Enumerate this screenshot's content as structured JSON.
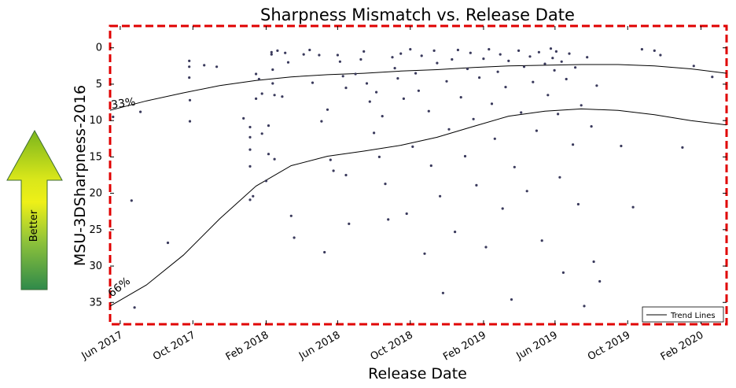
{
  "chart_data": {
    "type": "scatter",
    "title": "Sharpness Mismatch vs. Release Date",
    "xlabel": "Release Date",
    "ylabel": "MSU-3DSharpness-2016",
    "xlim": [
      "2017-05-15",
      "2020-03-15"
    ],
    "ylim": [
      38,
      -3
    ],
    "y_inverted": true,
    "x_ticks": [
      {
        "date": "2017-06-01",
        "label": "Jun 2017"
      },
      {
        "date": "2017-10-01",
        "label": "Oct 2017"
      },
      {
        "date": "2018-02-01",
        "label": "Feb 2018"
      },
      {
        "date": "2018-06-01",
        "label": "Jun 2018"
      },
      {
        "date": "2018-10-01",
        "label": "Oct 2018"
      },
      {
        "date": "2019-02-01",
        "label": "Feb 2019"
      },
      {
        "date": "2019-06-01",
        "label": "Jun 2019"
      },
      {
        "date": "2019-10-01",
        "label": "Oct 2019"
      },
      {
        "date": "2020-02-01",
        "label": "Feb 2020"
      }
    ],
    "y_ticks": [
      0,
      5,
      10,
      15,
      20,
      25,
      30,
      35
    ],
    "grid": false,
    "legend": {
      "placement": "bottom-right",
      "entries": [
        "Trend Lines"
      ]
    },
    "side_arrow_label": "Better",
    "trend_lines": [
      {
        "label": "33%",
        "points": [
          [
            "2017-05-15",
            8.6
          ],
          [
            "2017-07-15",
            7.3
          ],
          [
            "2017-09-15",
            6.2
          ],
          [
            "2017-11-15",
            5.2
          ],
          [
            "2018-01-15",
            4.5
          ],
          [
            "2018-03-15",
            4.0
          ],
          [
            "2018-05-15",
            3.7
          ],
          [
            "2018-07-15",
            3.5
          ],
          [
            "2018-09-15",
            3.2
          ],
          [
            "2018-11-15",
            3.0
          ],
          [
            "2019-01-15",
            2.7
          ],
          [
            "2019-03-15",
            2.5
          ],
          [
            "2019-05-15",
            2.4
          ],
          [
            "2019-07-15",
            2.3
          ],
          [
            "2019-09-15",
            2.3
          ],
          [
            "2019-11-15",
            2.5
          ],
          [
            "2020-01-15",
            2.9
          ],
          [
            "2020-03-15",
            3.5
          ]
        ]
      },
      {
        "label": "66%",
        "points": [
          [
            "2017-05-15",
            35.5
          ],
          [
            "2017-07-15",
            32.6
          ],
          [
            "2017-09-15",
            28.5
          ],
          [
            "2017-11-15",
            23.5
          ],
          [
            "2018-01-15",
            19.0
          ],
          [
            "2018-03-15",
            16.2
          ],
          [
            "2018-05-15",
            14.9
          ],
          [
            "2018-07-15",
            14.2
          ],
          [
            "2018-09-15",
            13.4
          ],
          [
            "2018-11-15",
            12.3
          ],
          [
            "2019-01-15",
            10.8
          ],
          [
            "2019-03-15",
            9.4
          ],
          [
            "2019-05-15",
            8.7
          ],
          [
            "2019-07-15",
            8.4
          ],
          [
            "2019-09-15",
            8.6
          ],
          [
            "2019-11-15",
            9.2
          ],
          [
            "2020-01-15",
            10.0
          ],
          [
            "2020-03-15",
            10.6
          ]
        ]
      }
    ],
    "series": [
      {
        "points": [
          [
            "2017-05-20",
            9.5
          ],
          [
            "2017-06-20",
            21.0
          ],
          [
            "2017-06-25",
            35.7
          ],
          [
            "2017-07-05",
            8.8
          ],
          [
            "2017-08-20",
            26.8
          ],
          [
            "2017-09-25",
            1.8
          ],
          [
            "2017-09-25",
            2.6
          ],
          [
            "2017-09-25",
            4.1
          ],
          [
            "2017-09-26",
            7.2
          ],
          [
            "2017-09-26",
            10.1
          ],
          [
            "2017-10-20",
            2.4
          ],
          [
            "2017-11-10",
            2.6
          ],
          [
            "2017-12-25",
            9.7
          ],
          [
            "2018-01-05",
            10.9
          ],
          [
            "2018-01-05",
            12.3
          ],
          [
            "2018-01-05",
            14.0
          ],
          [
            "2018-01-05",
            16.3
          ],
          [
            "2018-01-05",
            20.9
          ],
          [
            "2018-01-10",
            20.4
          ],
          [
            "2018-01-15",
            3.6
          ],
          [
            "2018-01-15",
            7.0
          ],
          [
            "2018-01-20",
            4.3
          ],
          [
            "2018-01-25",
            6.3
          ],
          [
            "2018-01-25",
            11.8
          ],
          [
            "2018-02-01",
            18.3
          ],
          [
            "2018-02-05",
            10.7
          ],
          [
            "2018-02-05",
            14.6
          ],
          [
            "2018-02-10",
            0.6
          ],
          [
            "2018-02-10",
            0.9
          ],
          [
            "2018-02-12",
            3.0
          ],
          [
            "2018-02-12",
            4.9
          ],
          [
            "2018-02-15",
            6.5
          ],
          [
            "2018-02-15",
            15.3
          ],
          [
            "2018-02-20",
            0.4
          ],
          [
            "2018-02-28",
            6.7
          ],
          [
            "2018-03-05",
            0.7
          ],
          [
            "2018-03-10",
            2.0
          ],
          [
            "2018-03-15",
            23.1
          ],
          [
            "2018-03-20",
            26.1
          ],
          [
            "2018-04-05",
            0.9
          ],
          [
            "2018-04-15",
            0.3
          ],
          [
            "2018-04-20",
            4.8
          ],
          [
            "2018-05-01",
            1.0
          ],
          [
            "2018-05-05",
            10.1
          ],
          [
            "2018-05-10",
            28.1
          ],
          [
            "2018-05-15",
            8.5
          ],
          [
            "2018-05-20",
            15.4
          ],
          [
            "2018-05-25",
            16.9
          ],
          [
            "2018-06-01",
            1.0
          ],
          [
            "2018-06-05",
            1.9
          ],
          [
            "2018-06-10",
            3.9
          ],
          [
            "2018-06-15",
            5.5
          ],
          [
            "2018-06-15",
            17.5
          ],
          [
            "2018-06-20",
            24.2
          ],
          [
            "2018-07-01",
            3.6
          ],
          [
            "2018-07-10",
            1.6
          ],
          [
            "2018-07-15",
            0.5
          ],
          [
            "2018-07-20",
            4.9
          ],
          [
            "2018-07-25",
            7.4
          ],
          [
            "2018-08-01",
            11.7
          ],
          [
            "2018-08-05",
            6.1
          ],
          [
            "2018-08-10",
            15.0
          ],
          [
            "2018-08-15",
            9.4
          ],
          [
            "2018-08-20",
            18.7
          ],
          [
            "2018-08-25",
            23.6
          ],
          [
            "2018-09-01",
            1.3
          ],
          [
            "2018-09-05",
            2.8
          ],
          [
            "2018-09-10",
            4.2
          ],
          [
            "2018-09-15",
            0.8
          ],
          [
            "2018-09-20",
            7.0
          ],
          [
            "2018-09-25",
            22.8
          ],
          [
            "2018-10-01",
            0.2
          ],
          [
            "2018-10-05",
            13.6
          ],
          [
            "2018-10-10",
            3.5
          ],
          [
            "2018-10-15",
            5.9
          ],
          [
            "2018-10-20",
            1.1
          ],
          [
            "2018-10-25",
            28.3
          ],
          [
            "2018-11-01",
            8.7
          ],
          [
            "2018-11-05",
            16.2
          ],
          [
            "2018-11-10",
            0.4
          ],
          [
            "2018-11-15",
            2.1
          ],
          [
            "2018-11-20",
            20.4
          ],
          [
            "2018-11-25",
            33.7
          ],
          [
            "2018-12-01",
            4.6
          ],
          [
            "2018-12-05",
            11.2
          ],
          [
            "2018-12-10",
            1.6
          ],
          [
            "2018-12-15",
            25.3
          ],
          [
            "2018-12-20",
            0.3
          ],
          [
            "2018-12-25",
            6.8
          ],
          [
            "2019-01-01",
            14.9
          ],
          [
            "2019-01-05",
            2.9
          ],
          [
            "2019-01-10",
            0.7
          ],
          [
            "2019-01-15",
            9.8
          ],
          [
            "2019-01-20",
            18.9
          ],
          [
            "2019-01-25",
            4.1
          ],
          [
            "2019-02-01",
            1.5
          ],
          [
            "2019-02-05",
            27.4
          ],
          [
            "2019-02-10",
            0.2
          ],
          [
            "2019-02-15",
            7.7
          ],
          [
            "2019-02-20",
            12.5
          ],
          [
            "2019-02-25",
            3.3
          ],
          [
            "2019-03-01",
            0.9
          ],
          [
            "2019-03-05",
            22.1
          ],
          [
            "2019-03-10",
            5.4
          ],
          [
            "2019-03-15",
            1.8
          ],
          [
            "2019-03-20",
            34.6
          ],
          [
            "2019-03-25",
            16.4
          ],
          [
            "2019-04-01",
            0.4
          ],
          [
            "2019-04-05",
            8.9
          ],
          [
            "2019-04-10",
            2.6
          ],
          [
            "2019-04-15",
            19.7
          ],
          [
            "2019-04-20",
            1.2
          ],
          [
            "2019-04-25",
            4.7
          ],
          [
            "2019-05-01",
            11.4
          ],
          [
            "2019-05-05",
            0.6
          ],
          [
            "2019-05-10",
            26.5
          ],
          [
            "2019-05-15",
            2.2
          ],
          [
            "2019-05-20",
            6.5
          ],
          [
            "2019-05-25",
            0.1
          ],
          [
            "2019-05-28",
            1.4
          ],
          [
            "2019-05-31",
            3.1
          ],
          [
            "2019-06-03",
            0.5
          ],
          [
            "2019-06-06",
            9.1
          ],
          [
            "2019-06-09",
            17.8
          ],
          [
            "2019-06-12",
            1.9
          ],
          [
            "2019-06-15",
            30.9
          ],
          [
            "2019-06-20",
            4.3
          ],
          [
            "2019-06-25",
            0.8
          ],
          [
            "2019-07-01",
            13.3
          ],
          [
            "2019-07-05",
            2.7
          ],
          [
            "2019-07-10",
            21.5
          ],
          [
            "2019-07-15",
            7.9
          ],
          [
            "2019-07-20",
            35.5
          ],
          [
            "2019-07-25",
            1.3
          ],
          [
            "2019-08-01",
            10.8
          ],
          [
            "2019-08-05",
            29.4
          ],
          [
            "2019-08-10",
            5.2
          ],
          [
            "2019-08-15",
            32.1
          ],
          [
            "2019-09-20",
            13.5
          ],
          [
            "2019-10-10",
            21.9
          ],
          [
            "2019-10-25",
            0.2
          ],
          [
            "2019-11-15",
            0.4
          ],
          [
            "2019-11-25",
            1.0
          ],
          [
            "2020-01-01",
            13.7
          ],
          [
            "2020-01-20",
            2.5
          ],
          [
            "2020-02-20",
            4.0
          ]
        ]
      }
    ]
  }
}
